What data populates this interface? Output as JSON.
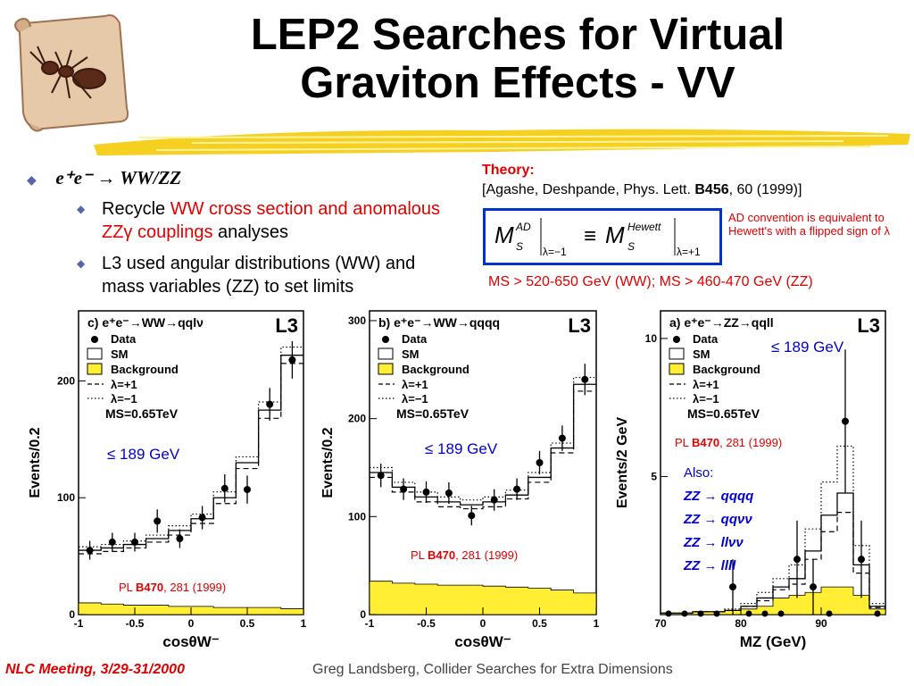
{
  "slide": {
    "title_line1": "LEP2 Searches for Virtual",
    "title_line2": "Graviton Effects - VV"
  },
  "bullets": {
    "main": "e⁺e⁻ → WW/ZZ",
    "sub1_a": "Recycle ",
    "sub1_b": "WW cross section and anomalous ZZγ couplings",
    "sub1_c": " analyses",
    "sub2": "L3 used angular distributions (WW) and mass variables (ZZ) to set limits"
  },
  "theory": {
    "label": "Theory:",
    "ref_pre": "[Agashe, Deshpande, Phys. Lett. ",
    "ref_vol": "B456",
    "ref_post": ", 60 (1999)]",
    "convention": "AD convention is equivalent to Hewett's with a flipped sign of λ",
    "limits": "MS > 520-650 GeV (WW); MS > 460-470 GeV (ZZ)",
    "formula_lhs_sup": "AD",
    "formula_rhs_sup": "Hewett",
    "formula_lhs_sub": "λ=−1",
    "formula_rhs_sub": "λ=+1"
  },
  "legend": {
    "data": "Data",
    "sm": "SM",
    "background": "Background",
    "lam_plus": "λ=+1",
    "lam_minus": "λ=−1",
    "ms": "MS=0.65TeV",
    "experiment": "L3",
    "energy": "≤ 189 GeV",
    "pl_pre": "PL ",
    "pl_vol": "B470",
    "pl_post": ", 281 (1999)"
  },
  "chart_data": [
    {
      "type": "bar",
      "title": "c) e⁺e⁻→WW→qqlν",
      "xlabel": "cosθW⁻",
      "ylabel": "Events/0.2",
      "xlim": [
        -1,
        1
      ],
      "ylim": [
        0,
        260
      ],
      "x_ticks": [
        "-1",
        "-0.5",
        "0",
        "0.5",
        "1"
      ],
      "y_ticks": [
        "0",
        "100",
        "200"
      ],
      "bin_edges": [
        -1,
        -0.8,
        -0.6,
        -0.4,
        -0.2,
        0,
        0.2,
        0.4,
        0.6,
        0.8,
        1.0
      ],
      "series": [
        {
          "name": "Data",
          "values": [
            55,
            62,
            62,
            80,
            65,
            83,
            108,
            107,
            180,
            218
          ],
          "errors": [
            8,
            8,
            8,
            10,
            8,
            10,
            12,
            12,
            14,
            16
          ]
        },
        {
          "name": "SM",
          "values": [
            55,
            57,
            60,
            65,
            72,
            82,
            100,
            130,
            175,
            222
          ]
        },
        {
          "name": "Background",
          "values": [
            10,
            9,
            8,
            8,
            7,
            7,
            6,
            6,
            6,
            5
          ]
        },
        {
          "name": "λ=+1",
          "values": [
            52,
            54,
            57,
            62,
            68,
            78,
            95,
            125,
            168,
            215
          ]
        },
        {
          "name": "λ=−1",
          "values": [
            58,
            60,
            63,
            68,
            76,
            86,
            105,
            135,
            182,
            229
          ]
        }
      ]
    },
    {
      "type": "bar",
      "title": "b) e⁺e⁻→WW→qqqq",
      "xlabel": "cosθW⁻",
      "ylabel": "Events/0.2",
      "xlim": [
        -1,
        1
      ],
      "ylim": [
        0,
        310
      ],
      "x_ticks": [
        "-1",
        "-0.5",
        "0",
        "0.5",
        "1"
      ],
      "y_ticks": [
        "0",
        "100",
        "200",
        "300"
      ],
      "bin_edges": [
        -1,
        -0.8,
        -0.6,
        -0.4,
        -0.2,
        0,
        0.2,
        0.4,
        0.6,
        0.8,
        1.0
      ],
      "series": [
        {
          "name": "Data",
          "values": [
            142,
            128,
            125,
            124,
            101,
            117,
            128,
            155,
            180,
            240
          ],
          "errors": [
            12,
            11,
            11,
            11,
            10,
            11,
            11,
            12,
            13,
            16
          ]
        },
        {
          "name": "SM",
          "values": [
            145,
            130,
            120,
            115,
            112,
            115,
            122,
            140,
            170,
            235
          ]
        },
        {
          "name": "Background",
          "values": [
            34,
            32,
            31,
            30,
            30,
            29,
            28,
            27,
            25,
            22
          ]
        },
        {
          "name": "λ=+1",
          "values": [
            140,
            125,
            115,
            110,
            108,
            110,
            118,
            135,
            165,
            228
          ]
        },
        {
          "name": "λ=−1",
          "values": [
            150,
            135,
            125,
            120,
            117,
            120,
            127,
            145,
            175,
            242
          ]
        }
      ]
    },
    {
      "type": "bar",
      "title": "a) e⁺e⁻→ZZ→qqll",
      "xlabel": "MZ (GeV)",
      "ylabel": "Events/2 GeV",
      "xlim": [
        70,
        98
      ],
      "ylim": [
        0,
        11
      ],
      "x_ticks": [
        "70",
        "80",
        "90"
      ],
      "y_ticks": [
        "5",
        "10"
      ],
      "bin_edges": [
        70,
        72,
        74,
        76,
        78,
        80,
        82,
        84,
        86,
        88,
        90,
        92,
        94,
        96,
        98
      ],
      "series": [
        {
          "name": "Data",
          "values": [
            0,
            0,
            0,
            0,
            1,
            0,
            0,
            0,
            2,
            1,
            0,
            7,
            2,
            0
          ],
          "errors": [
            0,
            0,
            0,
            0,
            1,
            0,
            0,
            0,
            1.4,
            1,
            0,
            2.6,
            1.4,
            0
          ]
        },
        {
          "name": "SM",
          "values": [
            0.05,
            0.05,
            0.1,
            0.1,
            0.15,
            0.3,
            0.6,
            1.0,
            1.3,
            2.3,
            3.6,
            4.4,
            1.8,
            0.3
          ]
        },
        {
          "name": "Background",
          "values": [
            0.05,
            0.05,
            0.1,
            0.1,
            0.15,
            0.2,
            0.3,
            0.6,
            0.7,
            0.8,
            1.0,
            1.0,
            0.7,
            0.2
          ]
        },
        {
          "name": "λ=+1",
          "values": [
            0.05,
            0.05,
            0.1,
            0.1,
            0.15,
            0.3,
            0.5,
            0.9,
            1.1,
            2.0,
            3.0,
            3.7,
            1.5,
            0.25
          ]
        },
        {
          "name": "λ=−1",
          "values": [
            0.05,
            0.05,
            0.1,
            0.1,
            0.2,
            0.4,
            0.8,
            1.3,
            1.8,
            3.1,
            4.8,
            6.1,
            2.5,
            0.4
          ]
        }
      ]
    }
  ],
  "zz_also": {
    "label": "Also:",
    "items": [
      "ZZ → qqqq",
      "ZZ → qqνν",
      "ZZ → llνν",
      "ZZ → llll"
    ]
  },
  "footer": {
    "left": "NLC Meeting, 3/29-31/2000",
    "right": "Greg Landsberg, Collider Searches for Extra Dimensions"
  },
  "colors": {
    "accent_red": "#e00000",
    "accent_blue": "#0000cc",
    "background_fill": "#ffee33",
    "formula_border": "#0033cc"
  }
}
